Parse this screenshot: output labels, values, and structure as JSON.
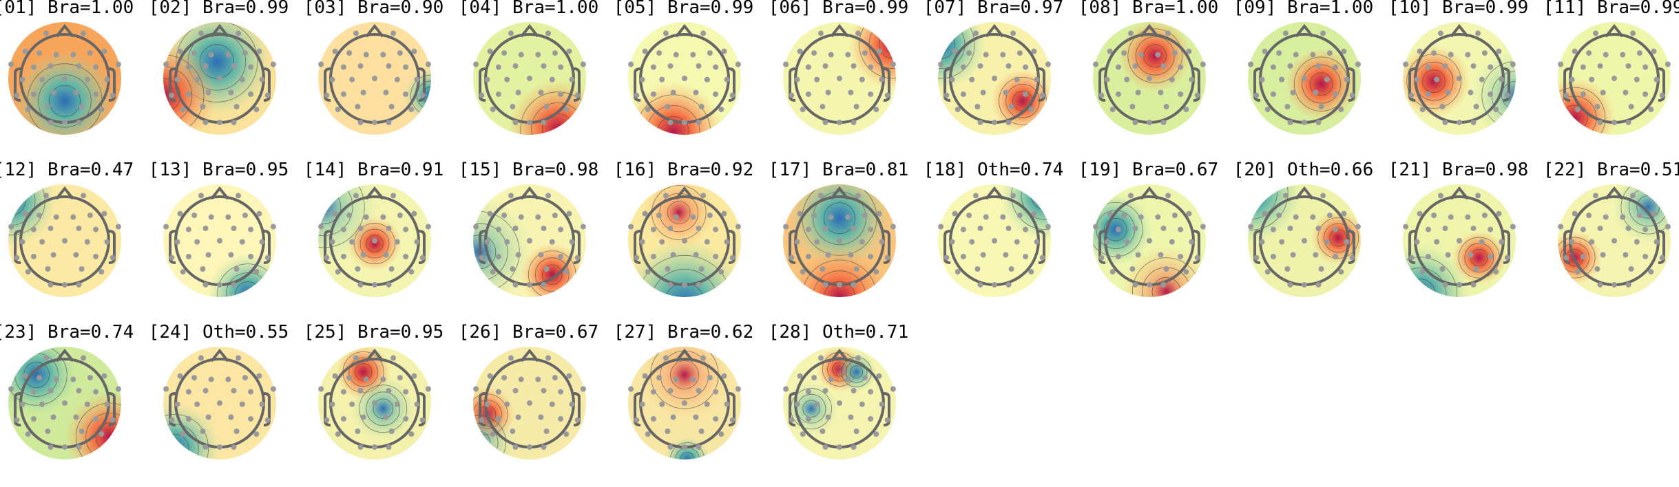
{
  "figure": {
    "components": [
      {
        "index": "[01]",
        "label": "Bra=1.00"
      },
      {
        "index": "[02]",
        "label": "Bra=0.99"
      },
      {
        "index": "[03]",
        "label": "Bra=0.90"
      },
      {
        "index": "[04]",
        "label": "Bra=1.00"
      },
      {
        "index": "[05]",
        "label": "Bra=0.99"
      },
      {
        "index": "[06]",
        "label": "Bra=0.99"
      },
      {
        "index": "[07]",
        "label": "Bra=0.97"
      },
      {
        "index": "[08]",
        "label": "Bra=1.00"
      },
      {
        "index": "[09]",
        "label": "Bra=1.00"
      },
      {
        "index": "[10]",
        "label": "Bra=0.99"
      },
      {
        "index": "[11]",
        "label": "Bra=0.99"
      },
      {
        "index": "[12]",
        "label": "Bra=0.47"
      },
      {
        "index": "[13]",
        "label": "Bra=0.95"
      },
      {
        "index": "[14]",
        "label": "Bra=0.91"
      },
      {
        "index": "[15]",
        "label": "Bra=0.98"
      },
      {
        "index": "[16]",
        "label": "Bra=0.92"
      },
      {
        "index": "[17]",
        "label": "Bra=0.81"
      },
      {
        "index": "[18]",
        "label": "Oth=0.74"
      },
      {
        "index": "[19]",
        "label": "Bra=0.67"
      },
      {
        "index": "[20]",
        "label": "Oth=0.66"
      },
      {
        "index": "[21]",
        "label": "Bra=0.98"
      },
      {
        "index": "[22]",
        "label": "Bra=0.51"
      },
      {
        "index": "[23]",
        "label": "Bra=0.74"
      },
      {
        "index": "[24]",
        "label": "Oth=0.55"
      },
      {
        "index": "[25]",
        "label": "Bra=0.95"
      },
      {
        "index": "[26]",
        "label": "Bra=0.67"
      },
      {
        "index": "[27]",
        "label": "Bra=0.62"
      },
      {
        "index": "[28]",
        "label": "Oth=0.71"
      }
    ],
    "colormap": {
      "positive": "#b2184a",
      "mid": "#fdfbb8",
      "negative": "#2d6db5"
    },
    "head_outline_color": "#666666",
    "sensor_color": "#999999",
    "columns": 11
  }
}
